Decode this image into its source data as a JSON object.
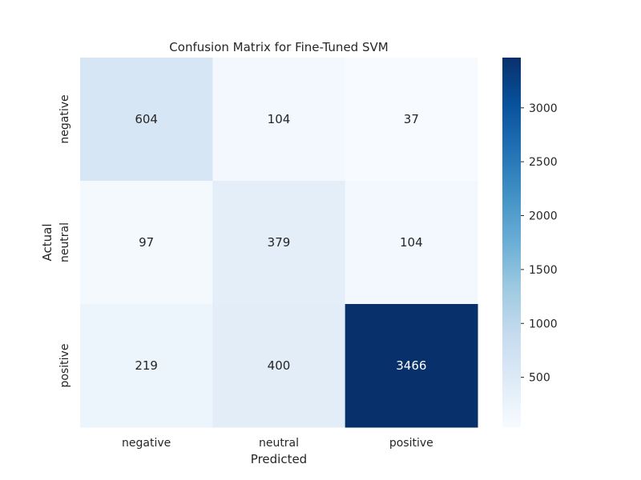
{
  "chart_data": {
    "type": "heatmap",
    "title": "Confusion Matrix for Fine-Tuned SVM",
    "xlabel": "Predicted",
    "ylabel": "Actual",
    "x_categories": [
      "negative",
      "neutral",
      "positive"
    ],
    "y_categories": [
      "negative",
      "neutral",
      "positive"
    ],
    "matrix": [
      [
        604,
        104,
        37
      ],
      [
        97,
        379,
        104
      ],
      [
        219,
        400,
        3466
      ]
    ],
    "colorscale": "Blues",
    "value_range": [
      37,
      3466
    ],
    "colorbar": {
      "ticks": [
        500,
        1000,
        1500,
        2000,
        2500,
        3000
      ]
    },
    "grid": false
  }
}
